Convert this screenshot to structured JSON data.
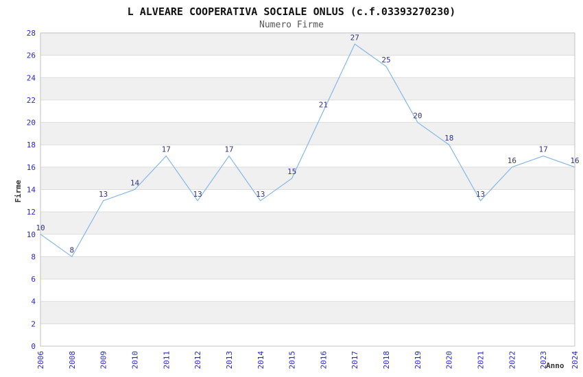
{
  "chart_data": {
    "type": "line",
    "title": "L ALVEARE COOPERATIVA SOCIALE ONLUS (c.f.03393270230)",
    "subtitle": "Numero Firme",
    "xlabel": "Anno",
    "ylabel": "Firme",
    "categories": [
      "2006",
      "2008",
      "2009",
      "2010",
      "2011",
      "2012",
      "2013",
      "2014",
      "2015",
      "2016",
      "2017",
      "2018",
      "2019",
      "2020",
      "2021",
      "2022",
      "2023",
      "2024"
    ],
    "values": [
      10,
      8,
      13,
      14,
      17,
      13,
      17,
      13,
      15,
      21,
      27,
      25,
      20,
      18,
      13,
      16,
      17,
      16
    ],
    "ylim": [
      0,
      28
    ],
    "ytick_step": 2,
    "grid": "alternating-horizontal-bands",
    "legend": "none",
    "colors": {
      "line": "#85b7e9",
      "data_label": "#333380",
      "tick_label": "#2626cc",
      "band": "#f0f0f0",
      "grid_line": "#dcdcdc",
      "plot_border": "#c0c0c0",
      "title": "#111111",
      "subtitle": "#555555",
      "axis_title": "#333333"
    }
  }
}
